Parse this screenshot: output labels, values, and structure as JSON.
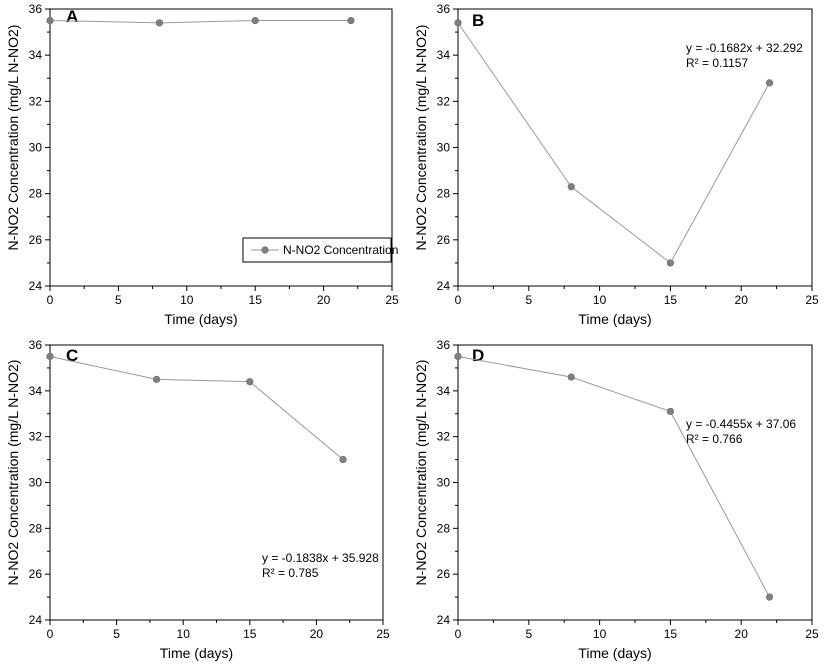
{
  "chart_data": [
    {
      "type": "line",
      "panel": "A",
      "x": [
        0,
        8,
        15,
        22
      ],
      "series": [
        {
          "name": "N-NO2 Concentration",
          "values": [
            35.5,
            35.4,
            35.5,
            35.5
          ]
        }
      ],
      "xlabel": "Time (days)",
      "ylabel": "N-NO2 Concentration (mg/L N-NO2)",
      "xlim": [
        0,
        25
      ],
      "ylim": [
        24,
        36
      ],
      "xticks": [
        0,
        5,
        10,
        15,
        20,
        25
      ],
      "yticks": [
        24,
        26,
        28,
        30,
        32,
        34,
        36
      ],
      "grid": false,
      "legend": {
        "position": "bottom-right",
        "entries": [
          "N-NO2 Concentration"
        ]
      },
      "annotation": []
    },
    {
      "type": "line",
      "panel": "B",
      "x": [
        0,
        8,
        15,
        22
      ],
      "series": [
        {
          "values": [
            35.4,
            28.3,
            25.0,
            32.8
          ]
        }
      ],
      "xlabel": "Time (days)",
      "ylabel": "N-NO2 Concentration (mg/L N-NO2)",
      "xlim": [
        0,
        25
      ],
      "ylim": [
        24,
        36
      ],
      "xticks": [
        0,
        5,
        10,
        15,
        20,
        25
      ],
      "yticks": [
        24,
        26,
        28,
        30,
        32,
        34,
        36
      ],
      "grid": false,
      "annotation": [
        "y = -0.1682x + 32.292",
        "R² = 0.1157"
      ]
    },
    {
      "type": "line",
      "panel": "C",
      "x": [
        0,
        8,
        15,
        22
      ],
      "series": [
        {
          "values": [
            35.5,
            34.5,
            34.4,
            31.0
          ]
        }
      ],
      "xlabel": "Time (days)",
      "ylabel": "N-NO2 Concentration (mg/L N-NO2)",
      "xlim": [
        0,
        25
      ],
      "ylim": [
        24,
        36
      ],
      "xticks": [
        0,
        5,
        10,
        15,
        20,
        25
      ],
      "yticks": [
        24,
        26,
        28,
        30,
        32,
        34,
        36
      ],
      "grid": false,
      "annotation": [
        "y = -0.1838x + 35.928",
        "R² = 0.785"
      ]
    },
    {
      "type": "line",
      "panel": "D",
      "x": [
        0,
        8,
        15,
        22
      ],
      "series": [
        {
          "values": [
            35.5,
            34.6,
            33.1,
            25.0
          ]
        }
      ],
      "xlabel": "Time (days)",
      "ylabel": "N-NO2 Concentration (mg/L N-NO2)",
      "xlim": [
        0,
        25
      ],
      "ylim": [
        24,
        36
      ],
      "xticks": [
        0,
        5,
        10,
        15,
        20,
        25
      ],
      "yticks": [
        24,
        26,
        28,
        30,
        32,
        34,
        36
      ],
      "grid": false,
      "annotation": [
        "y = -0.4455x + 37.06",
        "R² = 0.766"
      ]
    }
  ]
}
